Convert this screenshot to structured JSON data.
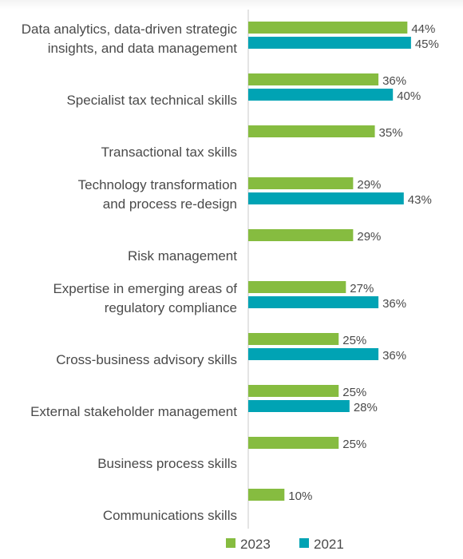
{
  "chart_data": {
    "type": "bar",
    "orientation": "horizontal",
    "categories": [
      [
        "Data analytics, data-driven strategic",
        "insights, and data management"
      ],
      [
        "Specialist tax technical skills"
      ],
      [
        "Transactional tax skills"
      ],
      [
        "Technology transformation",
        "and process re-design"
      ],
      [
        "Risk management"
      ],
      [
        "Expertise in emerging areas of",
        "regulatory compliance"
      ],
      [
        "Cross-business advisory skills"
      ],
      [
        "External stakeholder management"
      ],
      [
        "Business process skills"
      ],
      [
        "Communications skills"
      ]
    ],
    "series": [
      {
        "name": "2023",
        "color": "#86bc40",
        "values": [
          44,
          36,
          35,
          29,
          29,
          27,
          25,
          25,
          25,
          10
        ],
        "labels": [
          "44%",
          "36%",
          "35%",
          "29%",
          "29%",
          "27%",
          "25%",
          "25%",
          "25%",
          "10%"
        ]
      },
      {
        "name": "2021",
        "color": "#00a3b4",
        "values": [
          45,
          40,
          null,
          43,
          null,
          36,
          36,
          28,
          null,
          null
        ],
        "labels": [
          "45%",
          "40%",
          null,
          "43%",
          null,
          "36%",
          "36%",
          "28%",
          null,
          null
        ]
      }
    ],
    "xlim": [
      0,
      50
    ],
    "grid": false,
    "legend_position": "bottom"
  },
  "colors": {
    "axis_line": "#c8c8c8",
    "label_text": "#4a4a4a"
  }
}
